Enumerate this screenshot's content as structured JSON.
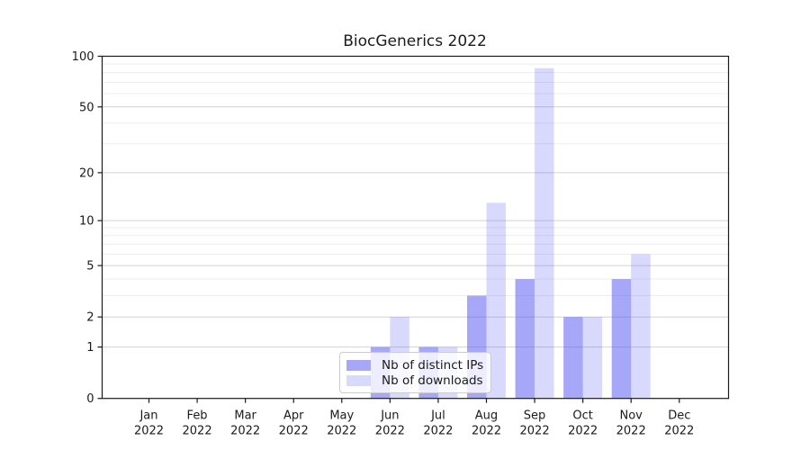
{
  "chart_data": {
    "type": "bar",
    "title": "BiocGenerics 2022",
    "categories": [
      "Jan",
      "Feb",
      "Mar",
      "Apr",
      "May",
      "Jun",
      "Jul",
      "Aug",
      "Sep",
      "Oct",
      "Nov",
      "Dec"
    ],
    "category_year": "2022",
    "series": [
      {
        "name": "Nb of distinct IPs",
        "color": "rgba(80,80,245,0.5)",
        "solid_color": "#a8a8f4",
        "values": [
          0,
          0,
          0,
          0,
          0,
          1,
          1,
          3,
          4,
          2,
          4,
          0
        ]
      },
      {
        "name": "Nb of downloads",
        "color": "rgba(80,80,245,0.22)",
        "solid_color": "#d8d8f8",
        "values": [
          0,
          0,
          0,
          0,
          0,
          2,
          1,
          13,
          85,
          2,
          6,
          0
        ]
      }
    ],
    "yscale": "symlog",
    "ylim": [
      0,
      100
    ],
    "yticks": [
      0,
      1,
      2,
      5,
      10,
      20,
      50,
      100
    ],
    "yticks_minor": [
      3,
      4,
      6,
      7,
      8,
      9,
      30,
      40,
      60,
      70,
      80,
      90
    ],
    "grid": true,
    "legend_position": "lower center-left inside plot",
    "colors": {
      "major_grid": "#d2d2d2",
      "minor_grid": "#ededed",
      "spine": "#1a1a1a",
      "text": "#1a1a1a"
    }
  }
}
